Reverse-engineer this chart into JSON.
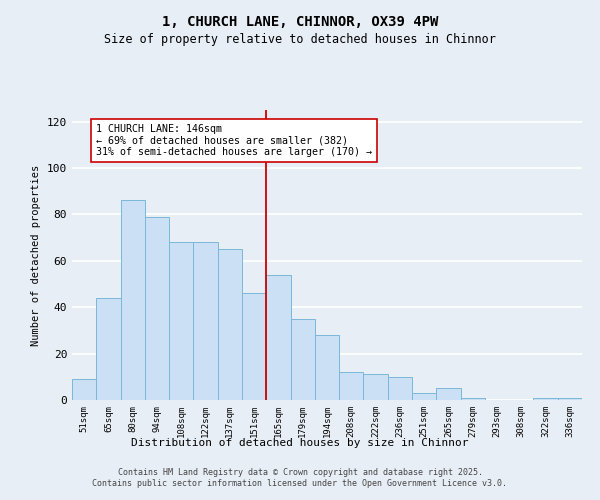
{
  "title": "1, CHURCH LANE, CHINNOR, OX39 4PW",
  "subtitle": "Size of property relative to detached houses in Chinnor",
  "xlabel": "Distribution of detached houses by size in Chinnor",
  "ylabel": "Number of detached properties",
  "categories": [
    "51sqm",
    "65sqm",
    "80sqm",
    "94sqm",
    "108sqm",
    "122sqm",
    "137sqm",
    "151sqm",
    "165sqm",
    "179sqm",
    "194sqm",
    "208sqm",
    "222sqm",
    "236sqm",
    "251sqm",
    "265sqm",
    "279sqm",
    "293sqm",
    "308sqm",
    "322sqm",
    "336sqm"
  ],
  "values": [
    9,
    44,
    86,
    79,
    68,
    68,
    65,
    46,
    54,
    35,
    28,
    12,
    11,
    10,
    3,
    5,
    1,
    0,
    0,
    1,
    1
  ],
  "bar_color": "#cce0f5",
  "bar_edge_color": "#7ab8d8",
  "vline_x_index": 7.5,
  "vline_color": "#cc0000",
  "annotation_text": "1 CHURCH LANE: 146sqm\n← 69% of detached houses are smaller (382)\n31% of semi-detached houses are larger (170) →",
  "annotation_box_color": "#ffffff",
  "annotation_box_edge_color": "#cc0000",
  "ylim": [
    0,
    125
  ],
  "yticks": [
    0,
    20,
    40,
    60,
    80,
    100,
    120
  ],
  "background_color": "#e8eef5",
  "grid_color": "#ffffff",
  "footer_line1": "Contains HM Land Registry data © Crown copyright and database right 2025.",
  "footer_line2": "Contains public sector information licensed under the Open Government Licence v3.0."
}
